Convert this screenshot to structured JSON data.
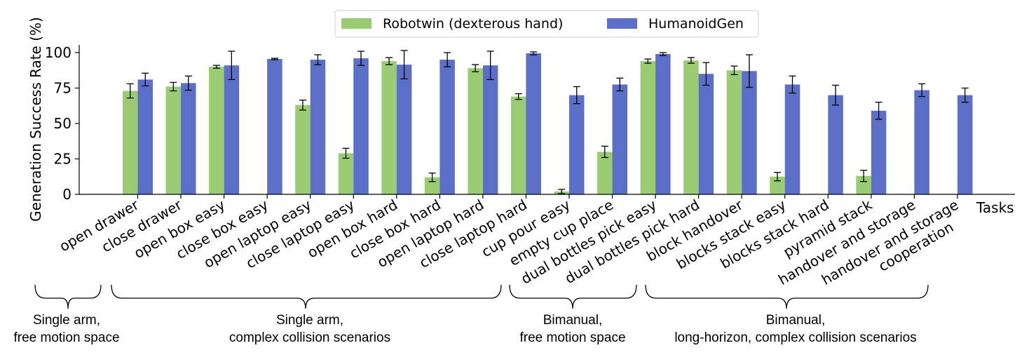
{
  "chart_data": {
    "type": "bar",
    "ylabel": "Generation Success Rate (%)",
    "xlabel": "Tasks",
    "ylim": [
      0,
      105
    ],
    "yticks": [
      0,
      25,
      50,
      75,
      100
    ],
    "grid": false,
    "legend_position": "top-center",
    "categories": [
      "open drawer",
      "close drawer",
      "open box easy",
      "close box easy",
      "open laptop easy",
      "close laptop easy",
      "open box hard",
      "close box hard",
      "open laptop hard",
      "close laptop hard",
      "cup pour easy",
      "empty cup place",
      "dual bottles pick easy",
      "dual bottles pick hard",
      "block handover",
      "blocks stack easy",
      "blocks stack hard",
      "pyramid stack",
      "handover and storage",
      "handover and storage\ncooperation"
    ],
    "series": [
      {
        "name": "Robotwin (dexterous hand)",
        "color": "#99cc73",
        "values": [
          73,
          76,
          90,
          0,
          63,
          29,
          94,
          12,
          89,
          69,
          2,
          30,
          94,
          94.5,
          87.5,
          12.5,
          0,
          13,
          0,
          0
        ],
        "errors": [
          5,
          3,
          1,
          0,
          3.5,
          3.5,
          2.5,
          3,
          2.5,
          2,
          1.5,
          4,
          1.5,
          2,
          3,
          3,
          0,
          4,
          0,
          0
        ]
      },
      {
        "name": "HumanoidGen",
        "color": "#5b6fc9",
        "values": [
          81,
          78.5,
          91,
          95.5,
          95,
          96,
          91.5,
          95,
          91,
          99.5,
          70,
          77.5,
          99,
          85,
          87,
          77.5,
          70,
          59,
          73.5,
          70
        ],
        "errors": [
          4.5,
          5,
          10,
          0.5,
          3.5,
          5,
          10,
          5,
          10,
          1,
          6,
          4.5,
          1,
          8,
          11.5,
          6,
          7,
          6,
          4.5,
          5
        ]
      }
    ],
    "groups": [
      {
        "line1": "Single arm,",
        "line2": "free motion space"
      },
      {
        "line1": "Single arm,",
        "line2": "complex collision scenarios"
      },
      {
        "line1": "Bimanual,",
        "line2": "free motion space"
      },
      {
        "line1": "Bimanual,",
        "line2": "long-horizon, complex collision scenarios"
      }
    ]
  }
}
